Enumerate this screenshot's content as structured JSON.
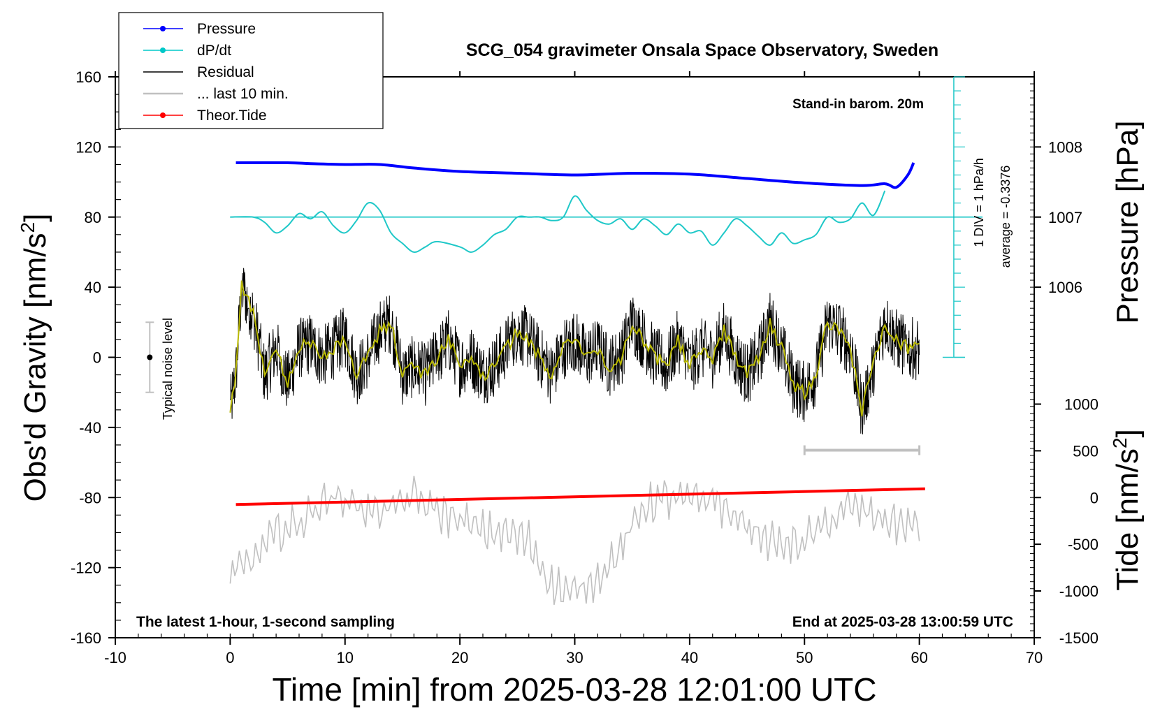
{
  "chart_data": {
    "type": "line",
    "title": "SCG_054 gravimeter Onsala Space Observatory, Sweden",
    "xlabel": "Time [min] from 2025-03-28 12:01:00 UTC",
    "ylabel_left": "Obs'd Gravity [nm/s",
    "ylabel_left_sup": "2",
    "ylabel_left_tail": "]",
    "ylabel_right_pressure": "Pressure [hPa]",
    "ylabel_right_tide": "Tide [nm/s",
    "ylabel_right_tide_sup": "2",
    "ylabel_right_tide_tail": "]",
    "xlim": [
      -10,
      70
    ],
    "ylim": [
      -160,
      160
    ],
    "xticks": [
      "-10",
      "0",
      "10",
      "20",
      "30",
      "40",
      "50",
      "60",
      "70"
    ],
    "yticks_left": [
      "160",
      "120",
      "80",
      "40",
      "0",
      "-40",
      "-80",
      "-120",
      "-160"
    ],
    "pressure_ticks": [
      "1008",
      "1007",
      "1006"
    ],
    "tide_ticks": [
      "1000",
      "500",
      "0",
      "-500",
      "-1000",
      "-1500"
    ],
    "annotations": {
      "barometer": "Stand-in barom. 20m",
      "div": "1 DIV = 1 hPa/h",
      "average": "average = -0.3376",
      "noise": "Typical noise level",
      "bottom_left": "The latest 1-hour, 1-second sampling",
      "bottom_right": "End at 2025-03-28 13:00:59 UTC"
    },
    "legend": [
      {
        "label": "Pressure",
        "color": "#0000ff",
        "marker": true
      },
      {
        "label": "dP/dt",
        "color": "#00c8c8",
        "marker": true
      },
      {
        "label": "Residual",
        "color": "#000000",
        "marker": false
      },
      {
        "label": "... last 10 min.",
        "color": "#c0c0c0",
        "marker": false
      },
      {
        "label": "Theor.Tide",
        "color": "#ff0000",
        "marker": true
      }
    ],
    "series": [
      {
        "name": "Pressure",
        "color": "#0000ff",
        "unit": "nm/s2-axis equivalent",
        "x": [
          0.5,
          5,
          7,
          10,
          13,
          16,
          20,
          25,
          30,
          35,
          40,
          45,
          50,
          55,
          57,
          58,
          59,
          59.5
        ],
        "y": [
          111,
          111,
          110.5,
          110,
          110,
          108,
          106,
          105,
          104,
          105,
          104.5,
          102,
          99.5,
          98,
          99,
          97,
          104,
          111
        ]
      },
      {
        "name": "dP/dt",
        "color": "#00c8c8",
        "x": [
          0,
          2,
          3,
          4,
          5,
          6,
          7,
          8,
          9,
          10,
          11,
          12,
          13,
          14,
          15,
          16,
          17,
          18,
          20,
          21,
          22,
          23,
          24,
          25,
          26,
          27,
          28,
          29,
          30,
          31,
          32,
          33,
          34,
          35,
          36,
          37,
          38,
          39,
          40,
          41,
          42,
          43,
          44,
          45,
          46,
          47,
          48,
          49,
          50,
          51,
          52,
          53,
          54,
          55,
          56,
          57
        ],
        "y": [
          80,
          80,
          77,
          71,
          75,
          82,
          79,
          83,
          75,
          71,
          78,
          88,
          84,
          71,
          65,
          60,
          63,
          66,
          63,
          60,
          64,
          70,
          73,
          80,
          80,
          80,
          78,
          80,
          92,
          84,
          78,
          76,
          79,
          73,
          79,
          75,
          70,
          76,
          71,
          72,
          64,
          71,
          79,
          75,
          69,
          64,
          71,
          65,
          67,
          70,
          80,
          77,
          79,
          88,
          81,
          95
        ]
      },
      {
        "name": "Theor.Tide",
        "color": "#ff0000",
        "x": [
          0.5,
          60.5
        ],
        "y": [
          -84,
          -75
        ]
      }
    ],
    "noise_bar": {
      "x": -7,
      "low": -20,
      "high": 20,
      "center": 0
    },
    "ten_min_bar": {
      "x_start": 50,
      "x_end": 60,
      "y": -53
    },
    "cyan_scale": {
      "x": 63,
      "y_top": 160,
      "y_bottom": 0,
      "divisions": 20,
      "baseline": 80
    }
  }
}
